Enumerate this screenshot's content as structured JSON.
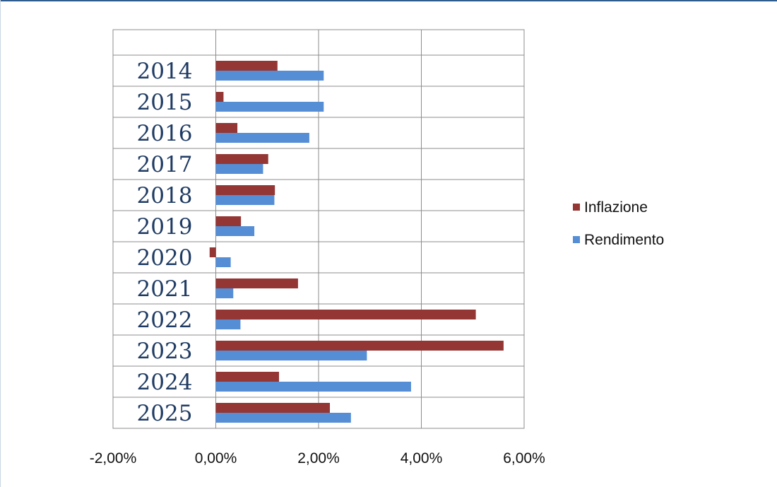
{
  "chart_data": {
    "type": "bar",
    "orientation": "horizontal",
    "title": "",
    "xlabel": "",
    "ylabel": "",
    "categories": [
      "2014",
      "2015",
      "2016",
      "2017",
      "2018",
      "2019",
      "2020",
      "2021",
      "2022",
      "2023",
      "2024",
      "2025"
    ],
    "x_ticks": [
      "-2,00%",
      "0,00%",
      "2,00%",
      "4,00%",
      "6,00%"
    ],
    "x_tick_values": [
      -2,
      0,
      2,
      4,
      6
    ],
    "xlim": [
      -2,
      6
    ],
    "grid": "vertical",
    "legend_position": "right",
    "series": [
      {
        "name": "Inflazione",
        "color": "#943634",
        "values": [
          1.2,
          0.15,
          0.42,
          1.02,
          1.15,
          0.49,
          -0.12,
          1.6,
          5.06,
          5.6,
          1.23,
          2.22
        ]
      },
      {
        "name": "Rendimento",
        "color": "#558ed5",
        "values": [
          2.1,
          2.1,
          1.82,
          0.92,
          1.14,
          0.75,
          0.29,
          0.34,
          0.48,
          2.94,
          3.8,
          2.63
        ]
      }
    ]
  }
}
